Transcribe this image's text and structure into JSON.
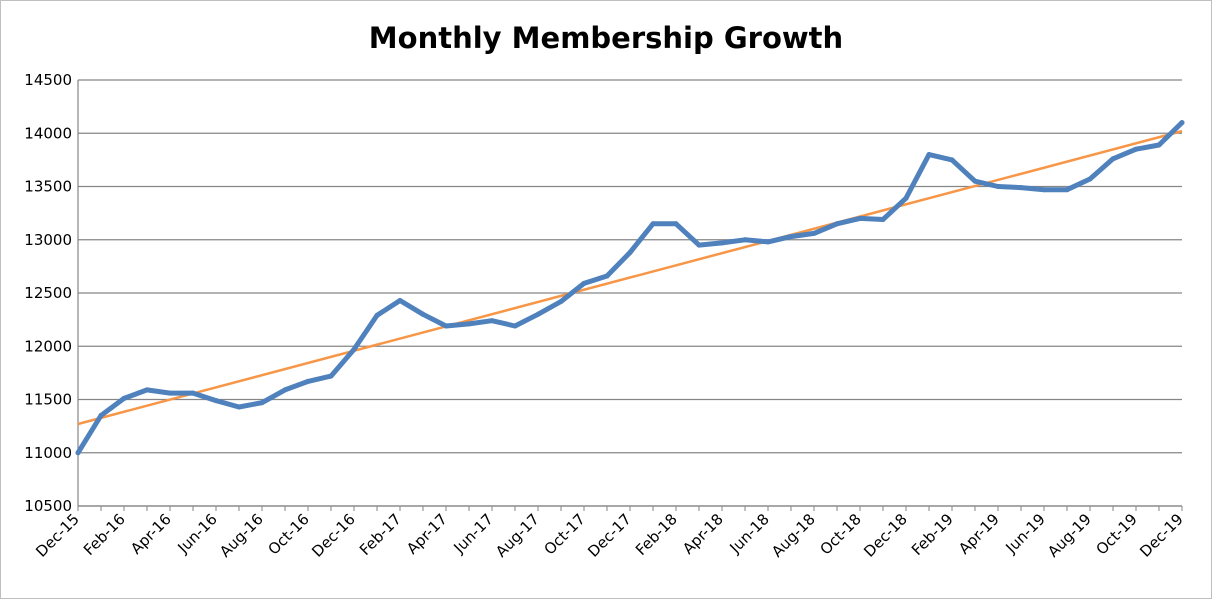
{
  "chart_data": {
    "type": "line",
    "title": "Monthly Membership Growth",
    "xlabel": "",
    "ylabel": "",
    "ylim": [
      10500,
      14500
    ],
    "yticks": [
      10500,
      11000,
      11500,
      12000,
      12500,
      13000,
      13500,
      14000,
      14500
    ],
    "grid": true,
    "legend": "none",
    "x": [
      "Dec-15",
      "Jan-16",
      "Feb-16",
      "Mar-16",
      "Apr-16",
      "May-16",
      "Jun-16",
      "Jul-16",
      "Aug-16",
      "Sep-16",
      "Oct-16",
      "Nov-16",
      "Dec-16",
      "Jan-17",
      "Feb-17",
      "Mar-17",
      "Apr-17",
      "May-17",
      "Jun-17",
      "Jul-17",
      "Aug-17",
      "Sep-17",
      "Oct-17",
      "Nov-17",
      "Dec-17",
      "Jan-18",
      "Feb-18",
      "Mar-18",
      "Apr-18",
      "May-18",
      "Jun-18",
      "Jul-18",
      "Aug-18",
      "Sep-18",
      "Oct-18",
      "Nov-18",
      "Dec-18",
      "Jan-19",
      "Feb-19",
      "Mar-19",
      "Apr-19",
      "May-19",
      "Jun-19",
      "Jul-19",
      "Aug-19",
      "Sep-19",
      "Oct-19",
      "Nov-19",
      "Dec-19"
    ],
    "x_tick_labels": [
      "Dec-15",
      "Feb-16",
      "Apr-16",
      "Jun-16",
      "Aug-16",
      "Oct-16",
      "Dec-16",
      "Feb-17",
      "Apr-17",
      "Jun-17",
      "Aug-17",
      "Oct-17",
      "Dec-17",
      "Feb-18",
      "Apr-18",
      "Jun-18",
      "Aug-18",
      "Oct-18",
      "Dec-18",
      "Feb-19",
      "Apr-19",
      "Jun-19",
      "Aug-19",
      "Oct-19",
      "Dec-19"
    ],
    "series": [
      {
        "values": [
          11000,
          11350,
          11510,
          11590,
          11560,
          11560,
          11490,
          11430,
          11470,
          11590,
          11670,
          11720,
          11970,
          12290,
          12430,
          12300,
          12190,
          12210,
          12240,
          12190,
          12300,
          12420,
          12590,
          12660,
          12880,
          13150,
          13150,
          12950,
          12970,
          13000,
          12980,
          13030,
          13060,
          13150,
          13200,
          13190,
          13390,
          13800,
          13750,
          13550,
          13500,
          13490,
          13470,
          13470,
          13570,
          13760,
          13850,
          13890,
          14100
        ],
        "color": "#4f81bd"
      },
      {
        "type": "trendline",
        "values_start_end": [
          11270,
          14020
        ],
        "color": "#f79646"
      }
    ]
  }
}
